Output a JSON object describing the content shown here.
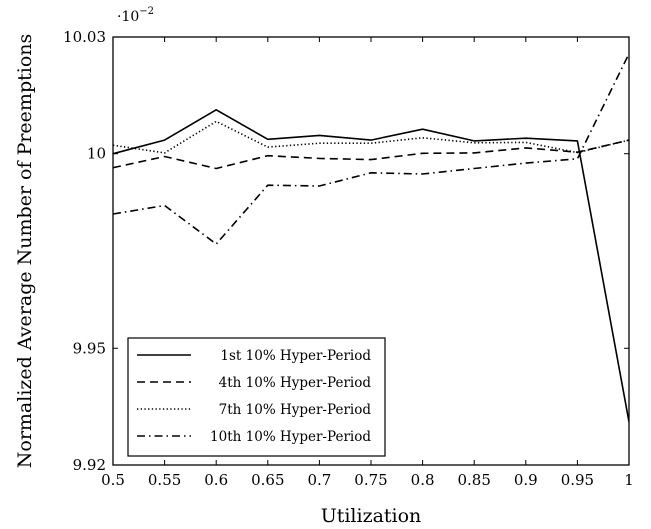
{
  "chart_data": {
    "type": "line",
    "title": "",
    "xlabel": "Utilization",
    "ylabel": "Normalized Average Number of Preemptions",
    "y_scale_label": "·10",
    "y_scale_exponent": "−2",
    "xlim": [
      0.5,
      1.0
    ],
    "ylim": [
      9.92,
      10.03
    ],
    "x": [
      0.5,
      0.55,
      0.6,
      0.65,
      0.7,
      0.75,
      0.8,
      0.85,
      0.9,
      0.95,
      1.0
    ],
    "x_tick_labels": [
      "0.5",
      "0.55",
      "0.6",
      "0.65",
      "0.7",
      "0.75",
      "0.8",
      "0.85",
      "0.9",
      "0.95",
      "1"
    ],
    "y_ticks": [
      9.92,
      9.95,
      10.0,
      10.03
    ],
    "y_tick_labels": [
      "9.92",
      "9.95",
      "10",
      "10.03"
    ],
    "grid": false,
    "legend_position": "bottom-left",
    "series": [
      {
        "name": "1st 10% Hyper-Period",
        "style": "solid",
        "values": [
          10.0,
          10.0035,
          10.0113,
          10.0037,
          10.0047,
          10.0035,
          10.0063,
          10.0033,
          10.004,
          10.0033,
          9.9311
        ]
      },
      {
        "name": "4th 10% Hyper-Period",
        "style": "dashed",
        "values": [
          9.9964,
          9.9993,
          9.9962,
          9.9995,
          9.9988,
          9.9985,
          10.0001,
          10.0002,
          10.0015,
          10.0004,
          10.0035
        ]
      },
      {
        "name": "7th 10% Hyper-Period",
        "style": "dotted",
        "values": [
          10.0022,
          10.0002,
          10.0083,
          10.0017,
          10.0027,
          10.0027,
          10.0041,
          10.0028,
          10.0029,
          10.0003,
          10.0035
        ]
      },
      {
        "name": "10th 10% Hyper-Period",
        "style": "dashdot",
        "values": [
          9.9845,
          9.9867,
          9.9768,
          9.9919,
          9.9917,
          9.9951,
          9.9948,
          9.9962,
          9.9976,
          9.9987,
          10.0257
        ]
      }
    ]
  }
}
